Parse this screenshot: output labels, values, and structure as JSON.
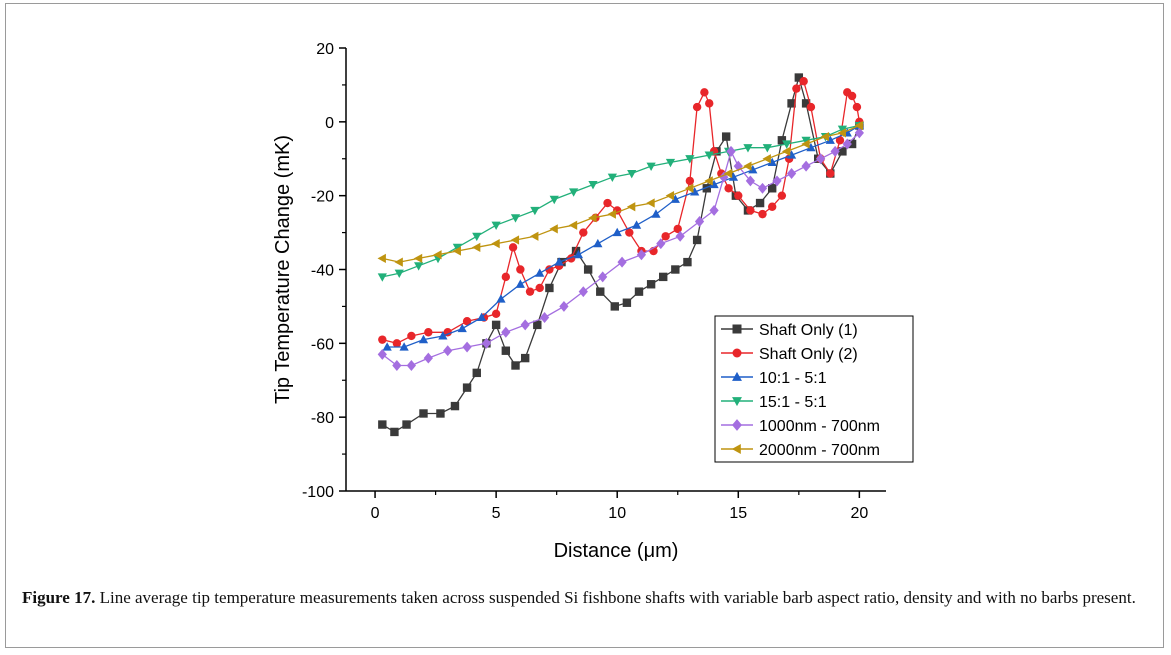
{
  "figure": {
    "caption_label": "Figure 17.",
    "caption_text": " Line average tip temperature measurements taken across suspended Si fishbone shafts with variable barb aspect ratio, density and with no barbs present."
  },
  "chart_data": {
    "type": "line",
    "title": "",
    "xlabel": "Distance (μm)",
    "ylabel": "Tip Temperature Change (mK)",
    "xlim": [
      -1.2,
      21.1
    ],
    "ylim": [
      -100,
      20
    ],
    "xticks": [
      0,
      5,
      10,
      15,
      20
    ],
    "yticks": [
      -100,
      -80,
      -60,
      -40,
      -20,
      0,
      20
    ],
    "grid": false,
    "legend_position": "lower-right",
    "series": [
      {
        "name": "Shaft Only (1)",
        "color": "#3a3a3a",
        "marker": "square",
        "x": [
          0.3,
          0.8,
          1.3,
          2.0,
          2.7,
          3.3,
          3.8,
          4.2,
          4.6,
          5.0,
          5.4,
          5.8,
          6.2,
          6.7,
          7.2,
          7.7,
          8.3,
          8.8,
          9.3,
          9.9,
          10.4,
          10.9,
          11.4,
          11.9,
          12.4,
          12.9,
          13.3,
          13.7,
          14.1,
          14.5,
          14.9,
          15.4,
          15.9,
          16.4,
          16.8,
          17.2,
          17.5,
          17.8,
          18.3,
          18.8,
          19.3,
          19.7,
          20.0
        ],
        "y": [
          -82,
          -84,
          -82,
          -79,
          -79,
          -77,
          -72,
          -68,
          -60,
          -55,
          -62,
          -66,
          -64,
          -55,
          -45,
          -38,
          -35,
          -40,
          -46,
          -50,
          -49,
          -46,
          -44,
          -42,
          -40,
          -38,
          -32,
          -18,
          -8,
          -4,
          -20,
          -24,
          -22,
          -18,
          -5,
          5,
          12,
          5,
          -10,
          -14,
          -8,
          -6,
          -1
        ]
      },
      {
        "name": "Shaft Only (2)",
        "color": "#e8262a",
        "marker": "circle",
        "x": [
          0.3,
          0.9,
          1.5,
          2.2,
          3.0,
          3.8,
          4.5,
          5.0,
          5.4,
          5.7,
          6.0,
          6.4,
          6.8,
          7.2,
          7.6,
          8.1,
          8.6,
          9.1,
          9.6,
          10.0,
          10.5,
          11.0,
          11.5,
          12.0,
          12.5,
          13.0,
          13.3,
          13.6,
          13.8,
          14.0,
          14.3,
          14.6,
          15.0,
          15.5,
          16.0,
          16.4,
          16.8,
          17.1,
          17.4,
          17.7,
          18.0,
          18.4,
          18.8,
          19.2,
          19.5,
          19.7,
          19.9,
          20.0
        ],
        "y": [
          -59,
          -60,
          -58,
          -57,
          -57,
          -54,
          -53,
          -52,
          -42,
          -34,
          -40,
          -46,
          -45,
          -40,
          -39,
          -37,
          -30,
          -26,
          -22,
          -24,
          -30,
          -35,
          -35,
          -31,
          -29,
          -16,
          4,
          8,
          5,
          -8,
          -14,
          -18,
          -20,
          -24,
          -25,
          -23,
          -20,
          -10,
          9,
          11,
          4,
          -10,
          -14,
          -5,
          8,
          7,
          4,
          0
        ]
      },
      {
        "name": "10:1 - 5:1",
        "color": "#1f5fc8",
        "marker": "triangle-up",
        "x": [
          0.5,
          1.2,
          2.0,
          2.8,
          3.6,
          4.4,
          5.2,
          6.0,
          6.8,
          7.6,
          8.4,
          9.2,
          10.0,
          10.8,
          11.6,
          12.4,
          13.2,
          14.0,
          14.8,
          15.6,
          16.4,
          17.2,
          18.0,
          18.8,
          19.5,
          20.0
        ],
        "y": [
          -61,
          -61,
          -59,
          -58,
          -56,
          -53,
          -48,
          -44,
          -41,
          -38,
          -36,
          -33,
          -30,
          -28,
          -25,
          -21,
          -19,
          -17,
          -15,
          -13,
          -11,
          -9,
          -7,
          -5,
          -3,
          -1
        ]
      },
      {
        "name": "15:1 - 5:1",
        "color": "#22b07a",
        "marker": "triangle-down",
        "x": [
          0.3,
          1.0,
          1.8,
          2.6,
          3.4,
          4.2,
          5.0,
          5.8,
          6.6,
          7.4,
          8.2,
          9.0,
          9.8,
          10.6,
          11.4,
          12.2,
          13.0,
          13.8,
          14.6,
          15.4,
          16.2,
          17.0,
          17.8,
          18.6,
          19.3,
          20.0
        ],
        "y": [
          -42,
          -41,
          -39,
          -37,
          -34,
          -31,
          -28,
          -26,
          -24,
          -21,
          -19,
          -17,
          -15,
          -14,
          -12,
          -11,
          -10,
          -9,
          -8,
          -7,
          -7,
          -6,
          -5,
          -4,
          -2,
          -1
        ]
      },
      {
        "name": "1000nm - 700nm",
        "color": "#a46ee0",
        "marker": "diamond",
        "x": [
          0.3,
          0.9,
          1.5,
          2.2,
          3.0,
          3.8,
          4.6,
          5.4,
          6.2,
          7.0,
          7.8,
          8.6,
          9.4,
          10.2,
          11.0,
          11.8,
          12.6,
          13.4,
          14.0,
          14.4,
          14.7,
          15.0,
          15.5,
          16.0,
          16.6,
          17.2,
          17.8,
          18.4,
          19.0,
          19.5,
          20.0
        ],
        "y": [
          -63,
          -66,
          -66,
          -64,
          -62,
          -61,
          -60,
          -57,
          -55,
          -53,
          -50,
          -46,
          -42,
          -38,
          -36,
          -33,
          -31,
          -27,
          -24,
          -15,
          -8,
          -12,
          -16,
          -18,
          -16,
          -14,
          -12,
          -10,
          -8,
          -6,
          -3
        ]
      },
      {
        "name": "2000nm - 700nm",
        "color": "#bf9410",
        "marker": "triangle-left",
        "x": [
          0.3,
          1.0,
          1.8,
          2.6,
          3.4,
          4.2,
          5.0,
          5.8,
          6.6,
          7.4,
          8.2,
          9.0,
          9.8,
          10.6,
          11.4,
          12.2,
          13.0,
          13.8,
          14.6,
          15.4,
          16.2,
          17.0,
          17.8,
          18.6,
          19.3,
          20.0
        ],
        "y": [
          -37,
          -38,
          -37,
          -36,
          -35,
          -34,
          -33,
          -32,
          -31,
          -29,
          -28,
          -26,
          -25,
          -23,
          -22,
          -20,
          -18,
          -16,
          -14,
          -12,
          -10,
          -8,
          -6,
          -4,
          -3,
          -1
        ]
      }
    ]
  }
}
